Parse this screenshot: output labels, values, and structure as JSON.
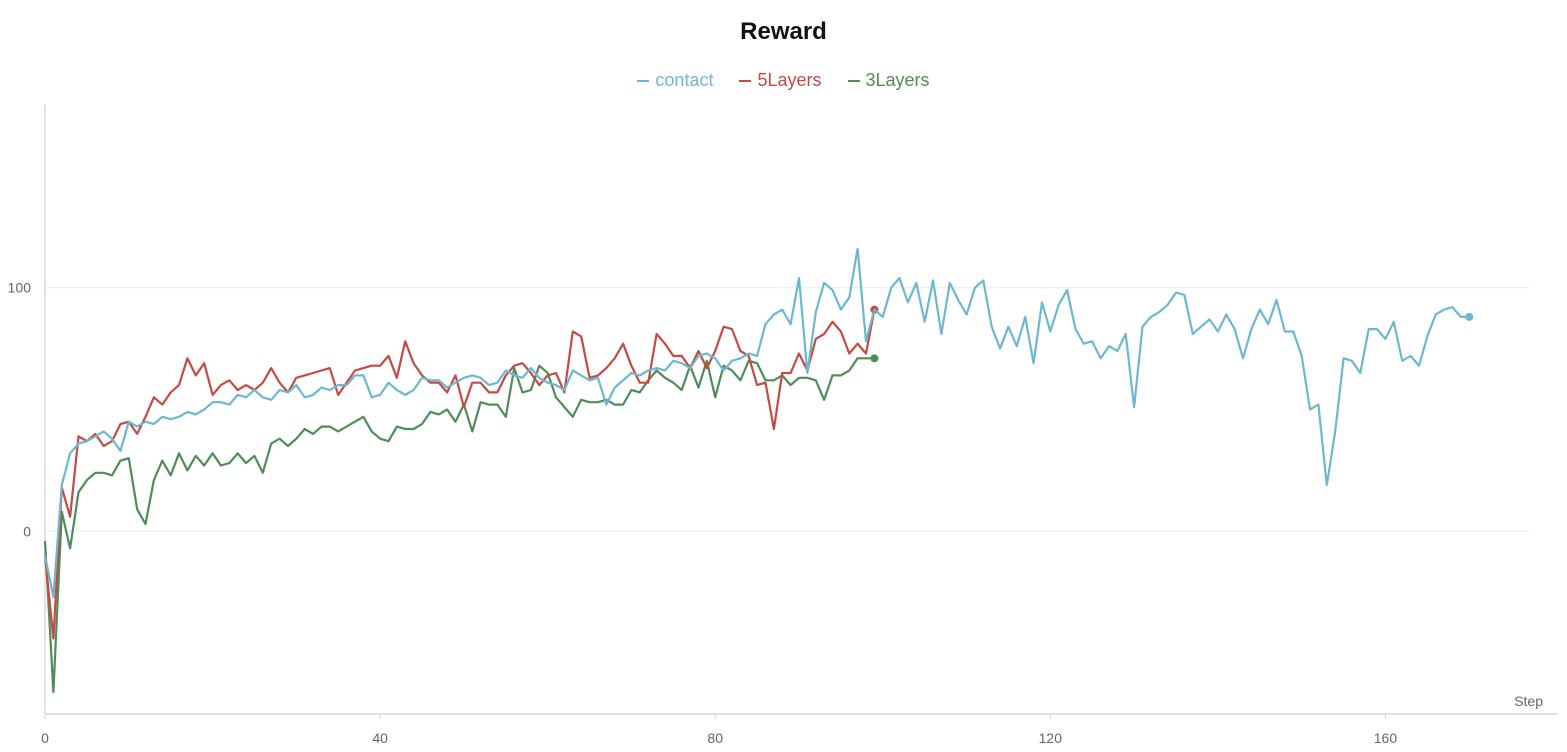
{
  "chart_data": {
    "type": "line",
    "title": "Reward",
    "xlabel": "Step",
    "ylabel": "",
    "xlim": [
      0,
      180
    ],
    "ylim": [
      -75,
      175
    ],
    "x_ticks": [
      0,
      40,
      80,
      120,
      160
    ],
    "y_ticks": [
      0,
      100
    ],
    "grid": "horizontal",
    "legend_position": "top-center",
    "series": [
      {
        "name": "contact",
        "color": "#6cb8d1",
        "x_start": 0,
        "values": [
          -10,
          -27,
          19,
          32,
          36,
          37,
          39,
          41,
          38,
          33,
          45,
          43,
          45,
          44,
          47,
          46,
          47,
          49,
          48,
          50,
          53,
          53,
          52,
          56,
          55,
          58,
          55,
          54,
          58,
          57,
          60,
          55,
          56,
          59,
          58,
          60,
          60,
          64,
          64,
          55,
          56,
          61,
          58,
          56,
          58,
          63,
          62,
          62,
          59,
          61,
          63,
          64,
          63,
          60,
          61,
          66,
          64,
          63,
          67,
          63,
          61,
          60,
          58,
          66,
          64,
          62,
          63,
          52,
          59,
          62,
          65,
          64,
          66,
          67,
          66,
          70,
          69,
          67,
          72,
          73,
          71,
          66,
          70,
          71,
          73,
          72,
          85,
          89,
          91,
          85,
          104,
          65,
          90,
          102,
          99,
          91,
          96,
          116,
          78,
          91,
          88,
          100,
          104,
          94,
          102,
          86,
          103,
          81,
          102,
          95,
          89,
          100,
          103,
          84,
          75,
          84,
          76,
          88,
          69,
          94,
          82,
          93,
          99,
          83,
          77,
          78,
          71,
          76,
          74,
          81,
          51,
          84,
          88,
          90,
          93,
          98,
          97,
          81,
          84,
          87,
          82,
          89,
          83,
          71,
          83,
          91,
          85,
          95,
          82,
          82,
          72,
          50,
          52,
          19,
          41,
          71,
          70,
          65,
          83,
          83,
          79,
          86,
          70,
          72,
          68,
          80,
          89,
          91,
          92,
          88,
          88
        ]
      },
      {
        "name": "5Layers",
        "color": "#c54a44",
        "x_start": 0,
        "values": [
          -10,
          -44,
          18,
          6,
          39,
          37,
          40,
          35,
          37,
          44,
          45,
          40,
          47,
          55,
          52,
          57,
          60,
          71,
          64,
          69,
          56,
          60,
          62,
          58,
          60,
          58,
          61,
          67,
          61,
          57,
          63,
          64,
          65,
          66,
          67,
          56,
          61,
          66,
          67,
          68,
          68,
          72,
          63,
          78,
          69,
          64,
          61,
          61,
          57,
          64,
          51,
          61,
          61,
          57,
          57,
          64,
          68,
          69,
          65,
          60,
          64,
          65,
          57,
          82,
          80,
          63,
          64,
          67,
          71,
          77,
          68,
          61,
          61,
          81,
          77,
          72,
          72,
          67,
          74,
          67,
          74,
          84,
          83,
          74,
          72,
          60,
          61,
          42,
          65,
          65,
          73,
          66,
          79,
          81,
          86,
          82,
          73,
          77,
          73,
          91
        ]
      },
      {
        "name": "3Layers",
        "color": "#4f8d58",
        "x_start": 0,
        "values": [
          -4,
          -66,
          8,
          -7,
          16,
          21,
          24,
          24,
          23,
          29,
          30,
          9,
          3,
          21,
          29,
          23,
          32,
          25,
          31,
          27,
          32,
          27,
          28,
          32,
          28,
          31,
          24,
          36,
          38,
          35,
          38,
          42,
          40,
          43,
          43,
          41,
          43,
          45,
          47,
          41,
          38,
          37,
          43,
          42,
          42,
          44,
          49,
          48,
          50,
          45,
          52,
          41,
          53,
          52,
          52,
          47,
          67,
          57,
          58,
          68,
          65,
          55,
          51,
          47,
          54,
          53,
          53,
          54,
          52,
          52,
          58,
          57,
          62,
          66,
          63,
          61,
          58,
          68,
          59,
          70,
          55,
          68,
          66,
          62,
          70,
          69,
          62,
          62,
          64,
          60,
          63,
          63,
          62,
          54,
          64,
          64,
          66,
          71,
          71,
          71
        ]
      }
    ]
  }
}
